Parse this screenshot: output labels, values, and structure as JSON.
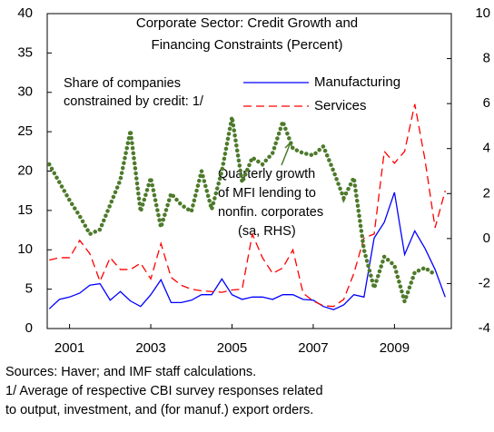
{
  "chart_data": {
    "type": "line",
    "title": [
      "Corporate Sector: Credit Growth and",
      "Financing Constraints (Percent)"
    ],
    "annotations": [
      [
        "Share of companies",
        "constrained by credit: 1/"
      ],
      [
        "Quarterly growth",
        "of MFI lending to",
        "nonfin. corporates",
        "(sa, RHS)"
      ]
    ],
    "x": [
      2000.5,
      2000.75,
      2001,
      2001.25,
      2001.5,
      2001.75,
      2002,
      2002.25,
      2002.5,
      2002.75,
      2003,
      2003.25,
      2003.5,
      2003.75,
      2004,
      2004.25,
      2004.5,
      2004.75,
      2005,
      2005.25,
      2005.5,
      2005.75,
      2006,
      2006.25,
      2006.5,
      2006.75,
      2007,
      2007.25,
      2007.5,
      2007.75,
      2008,
      2008.25,
      2008.5,
      2008.75,
      2009,
      2009.25,
      2009.5,
      2009.75,
      2010,
      2010.25
    ],
    "series": [
      {
        "name": "Manufacturing",
        "color": "#0000ff",
        "style": "solid",
        "values": [
          2.5,
          3.7,
          4,
          4.5,
          5.5,
          5.7,
          3.6,
          4.7,
          3.5,
          2.8,
          4.3,
          6.2,
          3.3,
          3.3,
          3.6,
          4.3,
          4.3,
          6.3,
          4.3,
          3.7,
          4,
          4,
          3.7,
          4.3,
          4.3,
          3.7,
          3.6,
          2.8,
          2.4,
          3,
          4.3,
          4,
          11.5,
          13.5,
          17.3,
          9.4,
          12.4,
          10.2,
          7.5,
          4
        ]
      },
      {
        "name": "Services",
        "color": "#ff0000",
        "style": "dashed",
        "values": [
          8.7,
          9,
          9,
          11.2,
          9.5,
          6,
          9,
          7.5,
          7.5,
          8.3,
          6.3,
          10.8,
          6.5,
          5.5,
          5,
          4.8,
          4.7,
          4.6,
          4.9,
          5,
          12,
          9,
          7,
          7.7,
          10,
          4.5,
          3.5,
          2.9,
          2.8,
          3.7,
          7,
          11.5,
          12,
          22.5,
          21,
          22.5,
          28.5,
          21.5,
          12.8,
          17.5
        ]
      },
      {
        "color": "#4d7a2b",
        "style": "dotted",
        "axis": "y2",
        "values": [
          3.3,
          2.5,
          1.7,
          1.0,
          0.2,
          0.4,
          1.5,
          2.6,
          4.8,
          1.2,
          2.7,
          0.5,
          2.0,
          1.5,
          1.2,
          3.0,
          1.3,
          3.0,
          5.4,
          2.5,
          3.6,
          3.3,
          3.8,
          5.2,
          4.0,
          3.8,
          3.7,
          4.1,
          3.0,
          1.8,
          2.7,
          -0.5,
          -2.2,
          -0.8,
          -1.2,
          -2.8,
          -1.5,
          -1.3,
          -1.6,
          null
        ]
      }
    ],
    "xlim": [
      2000.45,
      2010.4
    ],
    "xticks": [
      2001,
      2003,
      2005,
      2007,
      2009
    ],
    "ylim": [
      0,
      40
    ],
    "yticks": [
      0,
      5,
      10,
      15,
      20,
      25,
      30,
      35,
      40
    ],
    "y2lim": [
      -4,
      10
    ],
    "y2ticks": [
      -4,
      -2,
      0,
      2,
      4,
      6,
      8,
      10
    ],
    "footnotes": [
      "Sources: Haver; and IMF staff calculations.",
      "1/ Average of respective CBI survey responses related",
      "to output, investment, and (for manuf.) export orders."
    ]
  }
}
